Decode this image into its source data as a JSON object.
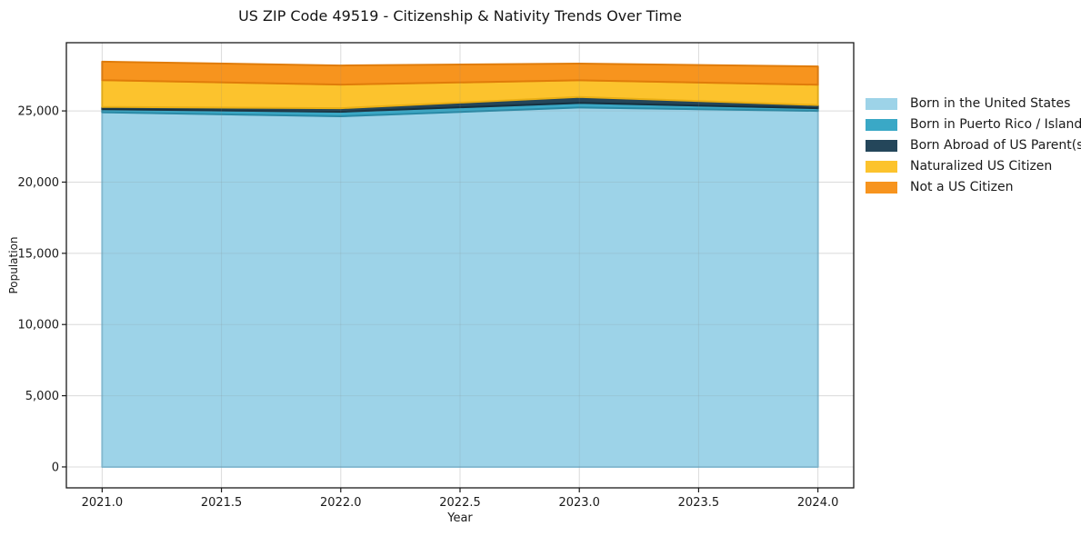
{
  "chart_data": {
    "type": "area",
    "stacked": true,
    "title": "US ZIP Code 49519 - Citizenship & Nativity Trends Over Time",
    "xlabel": "Year",
    "ylabel": "Population",
    "x": [
      2021,
      2022,
      2023,
      2024
    ],
    "series": [
      {
        "name": "Born in the United States",
        "color": "#9dd3e8",
        "edge": "#86c0d9",
        "values": [
          24900,
          24620,
          25240,
          25000
        ]
      },
      {
        "name": "Born in Puerto Rico / Islands",
        "color": "#3aa8c6",
        "edge": "#2a8aa6",
        "values": [
          220,
          320,
          320,
          190
        ]
      },
      {
        "name": "Born Abroad of US Parent(s)",
        "color": "#24465a",
        "edge": "#16303f",
        "values": [
          160,
          250,
          420,
          220
        ]
      },
      {
        "name": "Naturalized US Citizen",
        "color": "#fcc32d",
        "edge": "#eaaf14",
        "values": [
          1880,
          1660,
          1170,
          1430
        ]
      },
      {
        "name": "Not a US Citizen",
        "color": "#f7941e",
        "edge": "#e07c0a",
        "values": [
          1300,
          1340,
          1170,
          1280
        ]
      }
    ],
    "xlim": [
      2020.85,
      2024.15
    ],
    "ylim": [
      -1470,
      29790
    ],
    "xticks": [
      2021.0,
      2021.5,
      2022.0,
      2022.5,
      2023.0,
      2023.5,
      2024.0
    ],
    "xtick_labels": [
      "2021.0",
      "2021.5",
      "2022.0",
      "2022.5",
      "2023.0",
      "2023.5",
      "2024.0"
    ],
    "yticks": [
      0,
      5000,
      10000,
      15000,
      20000,
      25000
    ],
    "ytick_labels": [
      "0",
      "5,000",
      "10,000",
      "15,000",
      "20,000",
      "25,000"
    ],
    "grid": true,
    "legend_position": "right",
    "spine_color": "#1a1a1a",
    "tick_label_color": "#1a1a1a",
    "grid_color_under": "#ececec",
    "grid_color_over": "rgba(130,130,130,0.16)"
  }
}
